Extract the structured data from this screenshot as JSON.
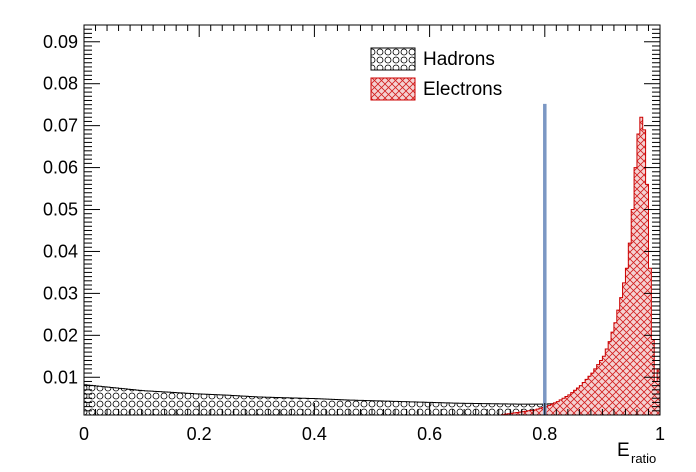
{
  "chart_data": {
    "type": "histogram",
    "xlabel_main": "E",
    "xlabel_sub": "ratio",
    "ylabel": "",
    "xlim": [
      0,
      1
    ],
    "ylim": [
      0.001,
      0.094
    ],
    "x_ticks": [
      "0",
      "0.2",
      "0.4",
      "0.6",
      "0.8",
      "1"
    ],
    "y_ticks": [
      "0.01",
      "0.02",
      "0.03",
      "0.04",
      "0.05",
      "0.06",
      "0.07",
      "0.08",
      "0.09"
    ],
    "legend_position": "top-center",
    "cut_line": {
      "x": 0.8,
      "y_top": 0.0752,
      "color": "#7b97c4"
    },
    "series": [
      {
        "name": "Hadrons",
        "color": "#000000",
        "fill_pattern": "circles",
        "bin_width": 0.005,
        "bin_starts": [
          0.0,
          0.05,
          0.1,
          0.15,
          0.2,
          0.25,
          0.3,
          0.35,
          0.4,
          0.45,
          0.5,
          0.55,
          0.6,
          0.65,
          0.7,
          0.75,
          0.8,
          0.85,
          0.9,
          0.92,
          0.94,
          0.96,
          0.98,
          1.0
        ],
        "values": [
          0.0082,
          0.0075,
          0.0068,
          0.0064,
          0.006,
          0.0057,
          0.0053,
          0.0051,
          0.0049,
          0.0046,
          0.0044,
          0.0042,
          0.004,
          0.0038,
          0.0037,
          0.0036,
          0.0036,
          0.004,
          0.0048,
          0.0052,
          0.0054,
          0.0052,
          0.004,
          0.001
        ]
      },
      {
        "name": "Electrons",
        "color": "#cc0000",
        "fill_pattern": "crosshatch",
        "bin_width": 0.005,
        "bin_starts": [
          0.72,
          0.75,
          0.78,
          0.8,
          0.82,
          0.84,
          0.86,
          0.88,
          0.9,
          0.91,
          0.92,
          0.93,
          0.94,
          0.945,
          0.95,
          0.955,
          0.96,
          0.965,
          0.97,
          0.975,
          0.98,
          0.985,
          0.99,
          0.995,
          1.0
        ],
        "values": [
          0.001,
          0.0016,
          0.0022,
          0.003,
          0.0042,
          0.0058,
          0.008,
          0.011,
          0.015,
          0.0185,
          0.023,
          0.029,
          0.036,
          0.042,
          0.05,
          0.06,
          0.068,
          0.072,
          0.069,
          0.056,
          0.036,
          0.019,
          0.009,
          0.012,
          0.012
        ]
      }
    ]
  }
}
